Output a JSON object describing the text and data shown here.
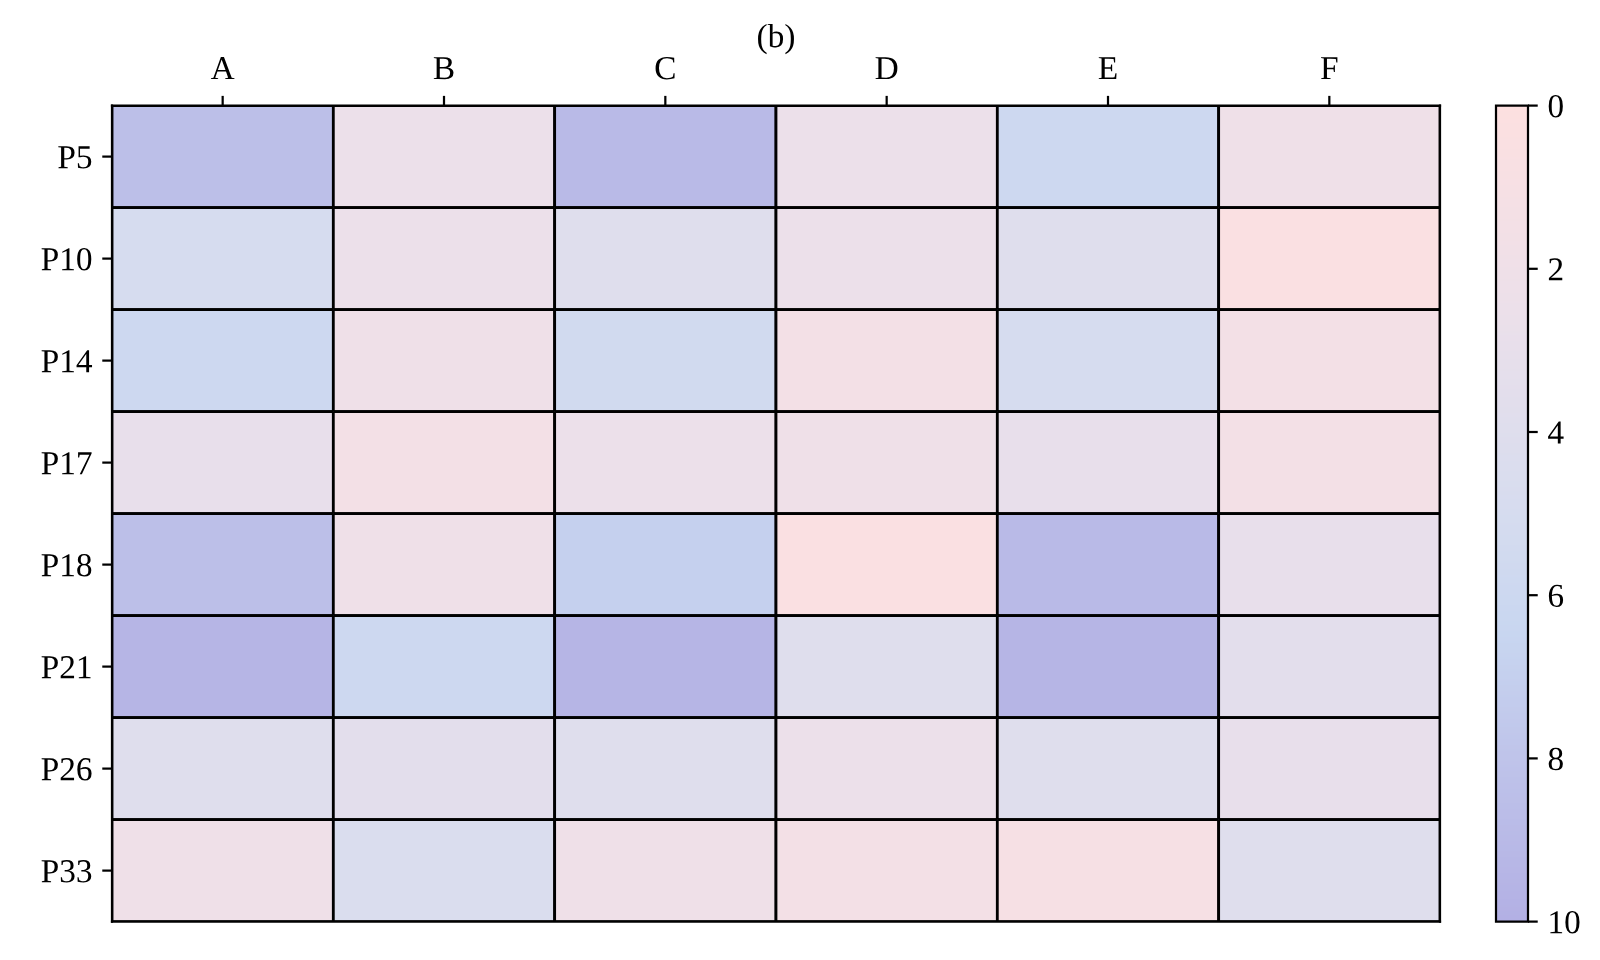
{
  "chart_data": {
    "type": "heatmap",
    "title": "(b)",
    "categories": [
      "A",
      "B",
      "C",
      "D",
      "E",
      "F"
    ],
    "y_categories": [
      "P5",
      "P10",
      "P14",
      "P17",
      "P18",
      "P21",
      "P26",
      "P33"
    ],
    "cells": [
      [
        8.5,
        2.5,
        9,
        2.5,
        6,
        2
      ],
      [
        5,
        2.5,
        4,
        2.5,
        4,
        0.5
      ],
      [
        6,
        2,
        5.5,
        1.5,
        5,
        1.5
      ],
      [
        3,
        1.5,
        2.5,
        2,
        3,
        1.5
      ],
      [
        8.5,
        2,
        7,
        0.5,
        9,
        3
      ],
      [
        9.5,
        6,
        9.5,
        4,
        9.5,
        3.5
      ],
      [
        4,
        3.5,
        4,
        2.5,
        4,
        3
      ],
      [
        2,
        4.5,
        2,
        1.5,
        1,
        4
      ]
    ],
    "clim": [
      0,
      10
    ],
    "cticks": [
      0,
      2,
      4,
      6,
      8,
      10
    ]
  }
}
